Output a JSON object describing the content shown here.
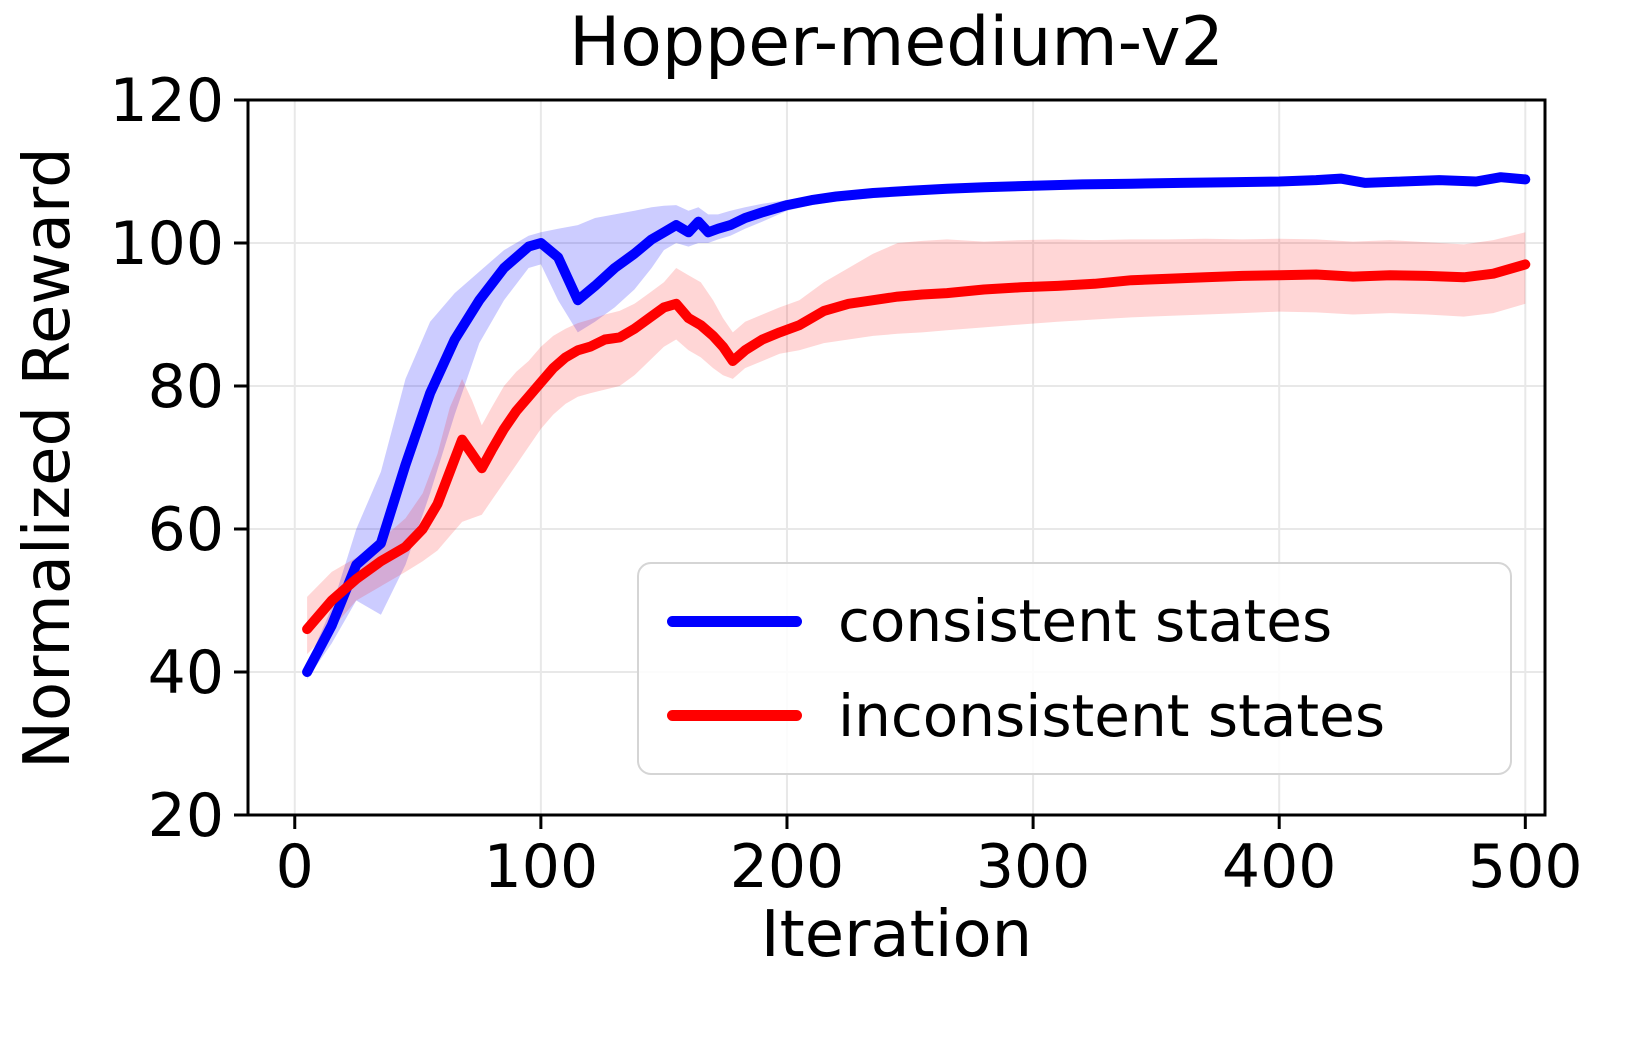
{
  "chart_data": {
    "type": "line",
    "title": "Hopper-medium-v2",
    "xlabel": "Iteration",
    "ylabel": "Normalized Reward",
    "xlim": [
      -19,
      508
    ],
    "ylim": [
      20,
      120
    ],
    "xticks": [
      0,
      100,
      200,
      300,
      400,
      500
    ],
    "yticks": [
      20,
      40,
      60,
      80,
      100,
      120
    ],
    "grid": true,
    "grid_color": "#e8e8e8",
    "axis_color": "#000000",
    "legend_position": "lower right",
    "series": [
      {
        "name": "consistent states",
        "color": "#0000ff",
        "band_opacity": 0.2,
        "x": [
          5,
          15,
          25,
          35,
          45,
          55,
          65,
          75,
          85,
          95,
          100,
          107,
          115,
          122,
          130,
          138,
          145,
          150,
          155,
          160,
          164,
          168,
          172,
          177,
          183,
          190,
          200,
          210,
          220,
          235,
          250,
          265,
          280,
          300,
          320,
          340,
          360,
          380,
          400,
          415,
          425,
          435,
          450,
          465,
          480,
          490,
          500
        ],
        "mean": [
          40,
          46.5,
          55,
          58,
          69,
          79,
          86.5,
          92,
          96.5,
          99.5,
          100,
          98,
          92,
          94,
          96.5,
          98.5,
          100.5,
          101.5,
          102.5,
          101.5,
          103,
          101.5,
          102,
          102.5,
          103.5,
          104.3,
          105.3,
          106,
          106.5,
          107,
          107.3,
          107.6,
          107.8,
          108,
          108.2,
          108.3,
          108.4,
          108.5,
          108.6,
          108.8,
          109,
          108.4,
          108.6,
          108.8,
          108.6,
          109.2,
          108.9
        ],
        "lo": [
          39,
          44,
          50,
          48,
          55,
          65,
          76,
          86,
          92,
          96.5,
          97,
          92,
          87.5,
          89,
          91,
          93.5,
          96.5,
          99,
          100,
          99.5,
          100,
          100,
          100.5,
          101,
          102,
          103,
          104.5,
          105.3,
          105.8,
          106.3,
          106.7,
          107,
          107.3,
          107.5,
          107.7,
          107.8,
          107.9,
          108,
          108.1,
          108.3,
          108.5,
          107.9,
          108.1,
          108.3,
          108,
          108.6,
          108.3
        ],
        "hi": [
          41,
          49,
          60,
          68,
          81,
          89,
          93,
          96,
          99,
          101,
          101.5,
          102,
          102.5,
          103.5,
          104,
          104.5,
          105,
          105.2,
          105.3,
          104.5,
          105,
          104,
          104,
          104.5,
          105,
          105.5,
          106,
          106.6,
          107.1,
          107.6,
          107.9,
          108.2,
          108.3,
          108.5,
          108.7,
          108.8,
          108.9,
          109,
          109.1,
          109.3,
          109.5,
          108.9,
          109.1,
          109.3,
          109.2,
          109.8,
          109.5
        ]
      },
      {
        "name": "inconsistent states",
        "color": "#ff0000",
        "band_opacity": 0.16,
        "x": [
          5,
          15,
          25,
          35,
          45,
          52,
          58,
          63,
          68,
          72,
          76,
          80,
          85,
          90,
          95,
          100,
          105,
          110,
          115,
          120,
          126,
          132,
          138,
          144,
          150,
          155,
          160,
          165,
          170,
          174,
          178,
          183,
          190,
          197,
          205,
          215,
          225,
          235,
          245,
          255,
          265,
          280,
          295,
          310,
          325,
          340,
          355,
          370,
          385,
          400,
          415,
          430,
          445,
          460,
          475,
          487,
          500
        ],
        "mean": [
          46,
          50,
          53,
          55.5,
          57.5,
          60,
          63.5,
          68,
          72.5,
          70.5,
          68.5,
          71,
          74,
          76.5,
          78.5,
          80.5,
          82.5,
          84,
          85,
          85.5,
          86.5,
          86.8,
          88,
          89.5,
          91,
          91.5,
          89.5,
          88.5,
          87,
          85.5,
          83.5,
          85,
          86.5,
          87.5,
          88.5,
          90.5,
          91.5,
          92,
          92.5,
          92.8,
          93,
          93.5,
          93.8,
          94,
          94.3,
          94.8,
          95,
          95.2,
          95.4,
          95.5,
          95.6,
          95.3,
          95.5,
          95.4,
          95.2,
          95.7,
          97
        ],
        "lo": [
          42.5,
          46,
          50,
          52,
          54,
          55.5,
          57,
          59,
          61,
          61.5,
          62,
          64,
          66.5,
          69,
          71.5,
          74,
          76,
          77.5,
          78.5,
          79,
          79.5,
          80,
          81.5,
          83.5,
          85.5,
          86.5,
          85,
          84,
          82.5,
          81.5,
          81,
          82.5,
          83.5,
          84.5,
          85,
          86,
          86.5,
          87,
          87.3,
          87.5,
          87.8,
          88.2,
          88.6,
          89,
          89.3,
          89.6,
          89.8,
          90,
          90.2,
          90.4,
          90.3,
          90,
          90.2,
          90,
          89.7,
          90.2,
          91.5
        ],
        "hi": [
          50.5,
          54,
          56,
          58.5,
          61.5,
          65,
          70.5,
          77,
          81,
          78,
          74.5,
          77,
          80,
          82,
          83.5,
          85.5,
          87,
          88,
          88.8,
          89.3,
          90,
          90.5,
          91.5,
          93,
          94.5,
          96.5,
          95.5,
          94.5,
          92,
          89.5,
          87.5,
          89,
          90,
          91,
          92,
          94.5,
          96.5,
          98.5,
          100,
          100.3,
          100.5,
          100.2,
          100.4,
          100.5,
          100.4,
          100.5,
          100.5,
          100.6,
          100.5,
          100.6,
          100.5,
          100.2,
          100.4,
          100.1,
          99.8,
          100.4,
          101.5
        ]
      }
    ]
  }
}
